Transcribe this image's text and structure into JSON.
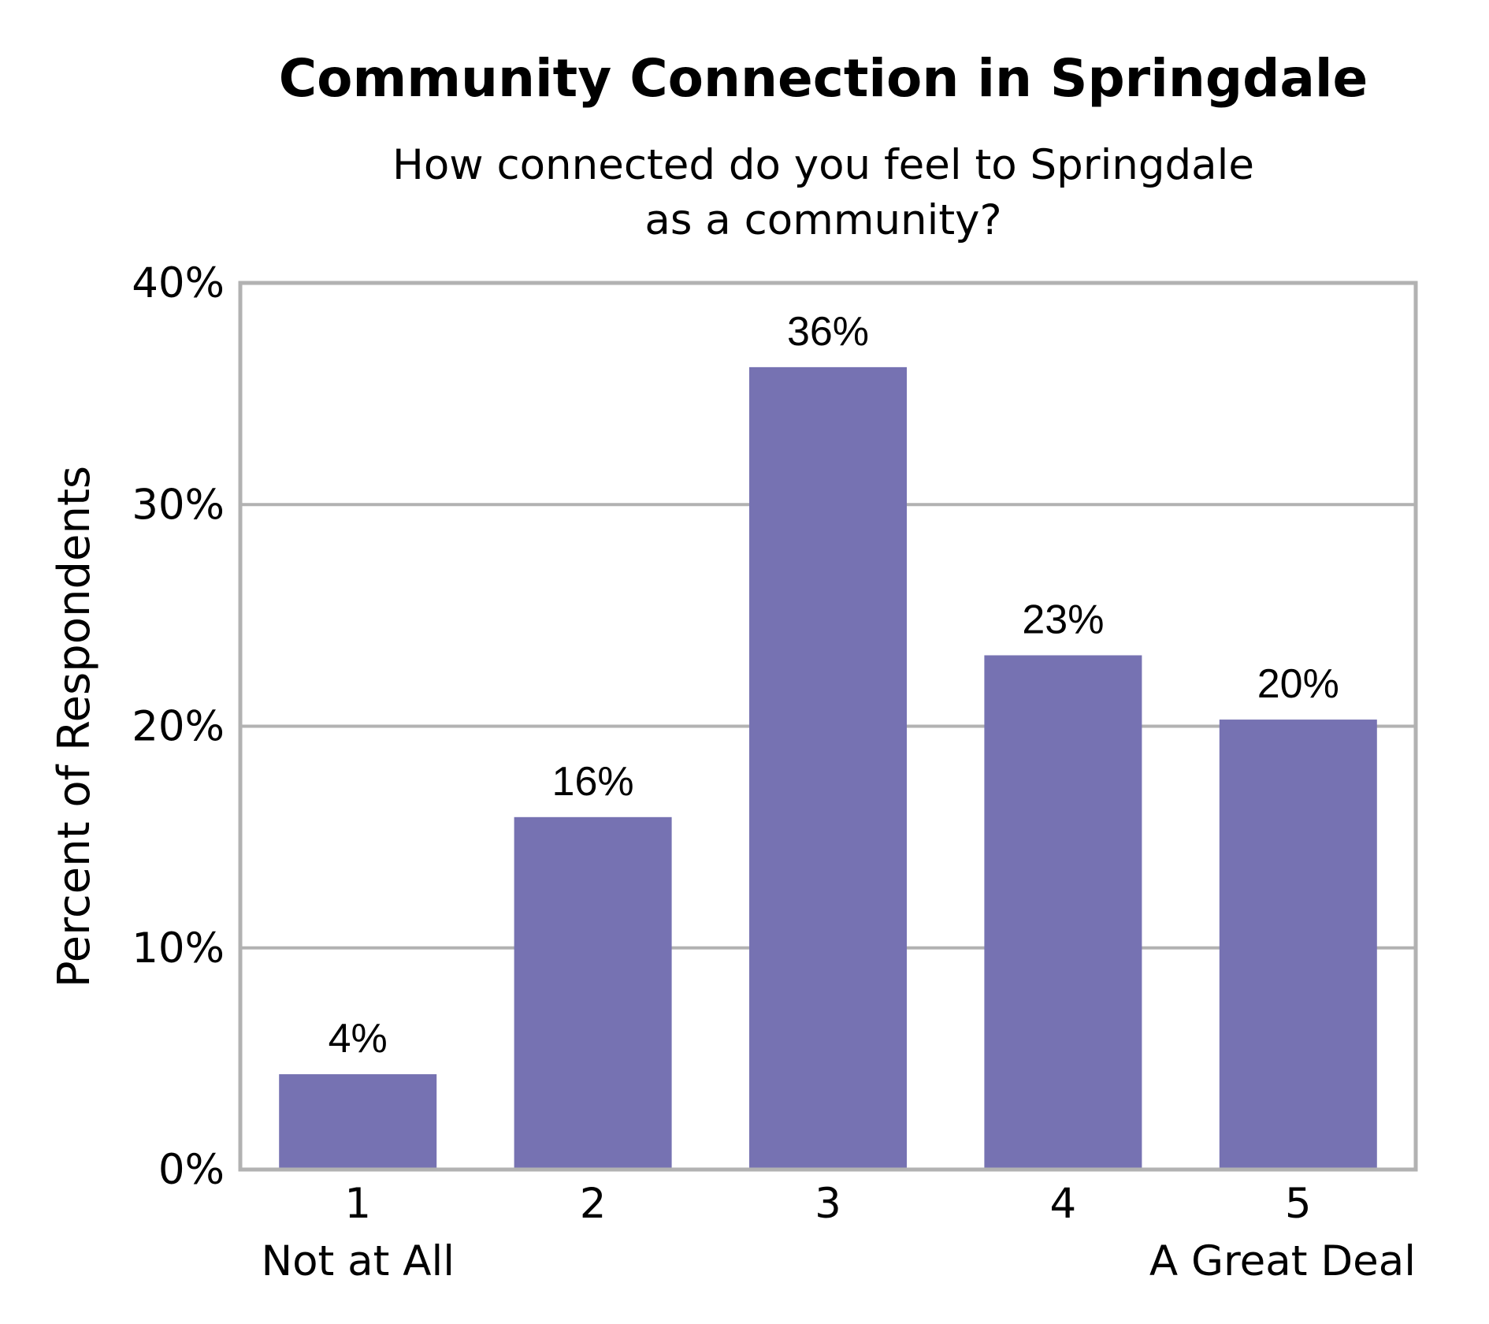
{
  "chart_data": {
    "type": "bar",
    "title": "Community Connection in Springdale",
    "subtitle_lines": [
      "How connected do you feel to Springdale",
      "as a community?"
    ],
    "ylabel": "Percent of Respondents",
    "xlabel": "",
    "categories": [
      "1",
      "2",
      "3",
      "4",
      "5"
    ],
    "category_sublabels": [
      "Not at All",
      "",
      "",
      "",
      "A Great Deal"
    ],
    "values": [
      4.3,
      15.9,
      36.2,
      23.2,
      20.3
    ],
    "data_labels": [
      "4%",
      "16%",
      "36%",
      "23%",
      "20%"
    ],
    "ylim": [
      0,
      40
    ],
    "yticks": [
      0,
      10,
      20,
      30,
      40
    ],
    "ytick_labels": [
      "0%",
      "10%",
      "20%",
      "30%",
      "40%"
    ],
    "grid": true,
    "legend": false,
    "bar_color": "#7672b2",
    "grid_color": "#b2b2b2",
    "frame_color": "#b2b2b2"
  }
}
